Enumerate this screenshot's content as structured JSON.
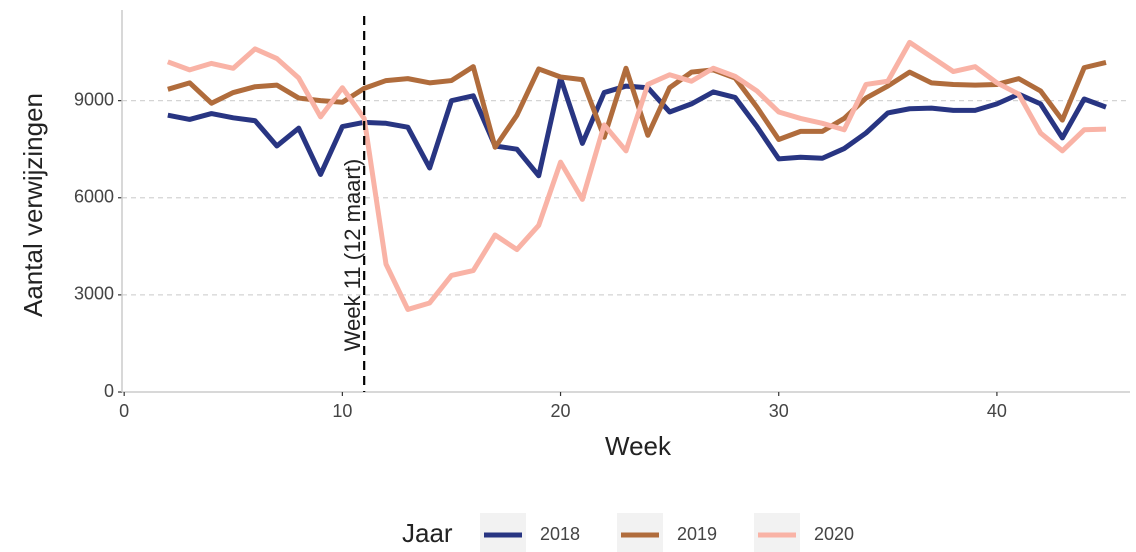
{
  "chart_data": {
    "type": "line",
    "x_label": "Week",
    "y_label": "Aantal verwijzingen",
    "x": [
      2,
      3,
      4,
      5,
      6,
      7,
      8,
      9,
      10,
      11,
      12,
      13,
      14,
      15,
      16,
      17,
      18,
      19,
      20,
      21,
      22,
      23,
      24,
      25,
      26,
      27,
      28,
      29,
      30,
      31,
      32,
      33,
      34,
      35,
      36,
      37,
      38,
      39,
      40,
      41,
      42,
      43,
      44,
      45
    ],
    "series": [
      {
        "name": "2018",
        "color": "#283582",
        "values": [
          8550,
          8420,
          8600,
          8470,
          8380,
          7600,
          8150,
          6720,
          8200,
          8330,
          8300,
          8180,
          6920,
          9000,
          9150,
          7600,
          7500,
          6680,
          9700,
          7680,
          9250,
          9450,
          9400,
          8650,
          8900,
          9270,
          9100,
          8200,
          7200,
          7250,
          7220,
          7520,
          8000,
          8620,
          8750,
          8770,
          8700,
          8700,
          8900,
          9200,
          8900,
          7850,
          9050,
          8800
        ]
      },
      {
        "name": "2019",
        "color": "#b06c3c",
        "values": [
          9350,
          9550,
          8920,
          9250,
          9430,
          9480,
          9080,
          9000,
          8950,
          9380,
          9620,
          9680,
          9550,
          9620,
          10050,
          7560,
          8550,
          9980,
          9730,
          9650,
          7870,
          10000,
          7930,
          9400,
          9880,
          9950,
          9700,
          8800,
          7800,
          8050,
          8050,
          8450,
          9080,
          9450,
          9880,
          9550,
          9500,
          9480,
          9500,
          9680,
          9300,
          8400,
          10020,
          10180
        ]
      },
      {
        "name": "2020",
        "color": "#f9b3a6",
        "values": [
          10200,
          9950,
          10150,
          10000,
          10600,
          10300,
          9700,
          8500,
          9400,
          8450,
          3950,
          2550,
          2750,
          3600,
          3750,
          4850,
          4400,
          5150,
          7100,
          5950,
          8250,
          7450,
          9500,
          9800,
          9600,
          10000,
          9750,
          9300,
          8650,
          8450,
          8300,
          8100,
          9500,
          9600,
          10800,
          10350,
          9900,
          10050,
          9550,
          9200,
          8000,
          7450,
          8100,
          8120
        ]
      }
    ],
    "xlim": [
      -0.1,
      46.1
    ],
    "xticks": [
      0,
      10,
      20,
      30,
      40
    ],
    "ylim": [
      0,
      11800
    ],
    "yticks": [
      0,
      3000,
      6000,
      9000
    ],
    "grid": true,
    "vline": {
      "x": 11,
      "label": "Week 11 (12 maart)"
    },
    "legend_title": "Jaar",
    "legend_position": "bottom"
  }
}
